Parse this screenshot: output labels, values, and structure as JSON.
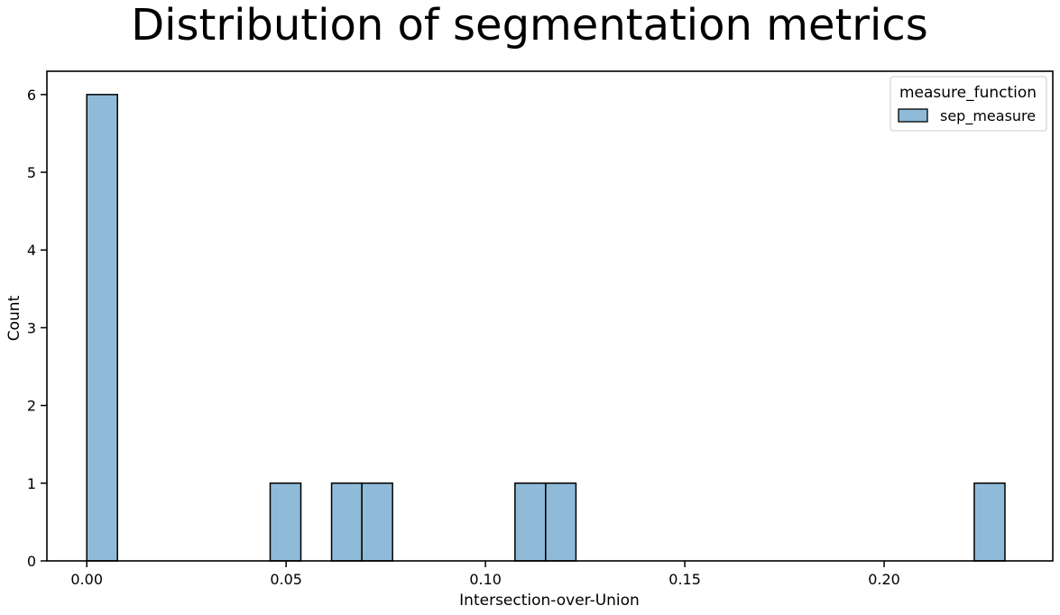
{
  "chart_data": {
    "type": "bar",
    "subtype": "histogram",
    "title": "Distribution of segmentation metrics",
    "xlabel": "Intersection-over-Union",
    "ylabel": "Count",
    "xlim": [
      -0.01,
      0.2423
    ],
    "ylim": [
      0,
      6.3
    ],
    "xticks": [
      0.0,
      0.05,
      0.1,
      0.15,
      0.2
    ],
    "xtick_labels": [
      "0.00",
      "0.05",
      "0.10",
      "0.15",
      "0.20"
    ],
    "yticks": [
      0,
      1,
      2,
      3,
      4,
      5,
      6
    ],
    "ytick_labels": [
      "0",
      "1",
      "2",
      "3",
      "4",
      "5",
      "6"
    ],
    "grid": false,
    "legend": {
      "title": "measure_function",
      "position": "top-right",
      "entries": [
        {
          "name": "sep_measure",
          "color": "#8fbbd9"
        }
      ]
    },
    "series": [
      {
        "name": "sep_measure",
        "color": "#8fbbd9",
        "edge_color": "#000000",
        "bins": [
          {
            "x_start": 0.0,
            "x_end": 0.0077,
            "count": 6
          },
          {
            "x_start": 0.046,
            "x_end": 0.0537,
            "count": 1
          },
          {
            "x_start": 0.0614,
            "x_end": 0.069,
            "count": 1
          },
          {
            "x_start": 0.069,
            "x_end": 0.0767,
            "count": 1
          },
          {
            "x_start": 0.1074,
            "x_end": 0.1151,
            "count": 1
          },
          {
            "x_start": 0.1151,
            "x_end": 0.1227,
            "count": 1
          },
          {
            "x_start": 0.2226,
            "x_end": 0.2303,
            "count": 1
          }
        ]
      }
    ]
  }
}
